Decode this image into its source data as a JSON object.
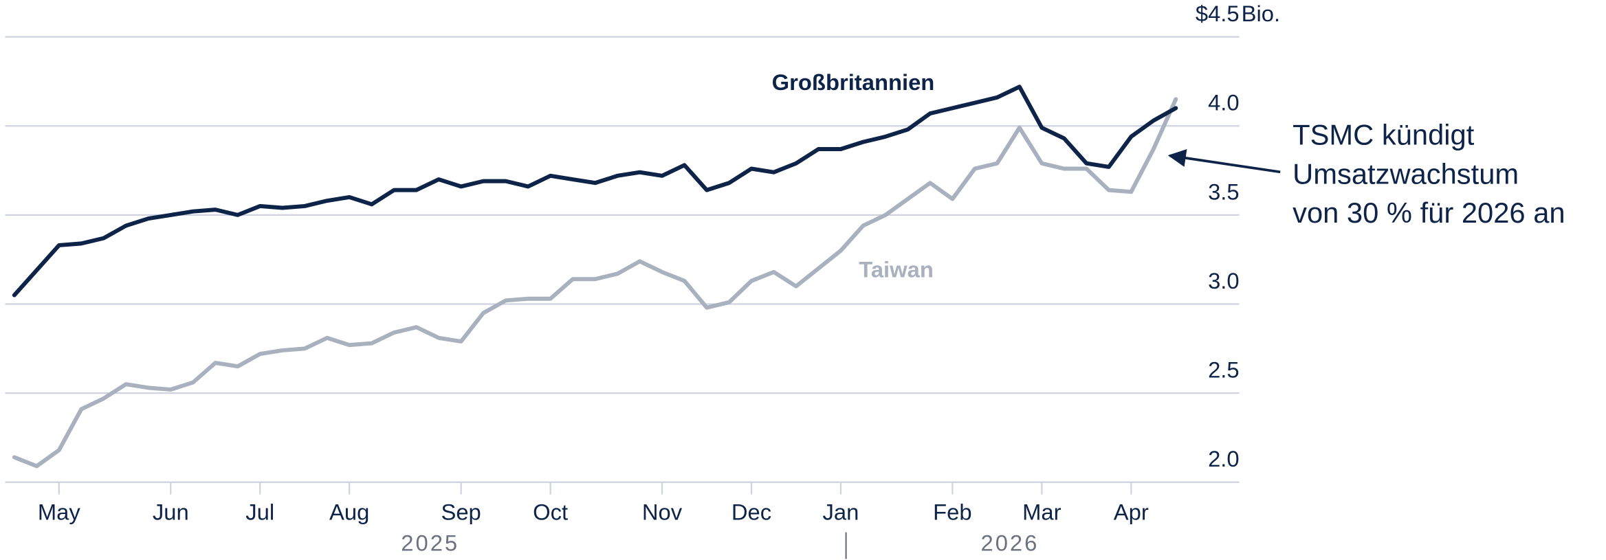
{
  "chart_data": {
    "type": "line",
    "categories": [
      null,
      null,
      "May",
      null,
      null,
      null,
      null,
      "Jun",
      null,
      null,
      null,
      "Jul",
      null,
      null,
      null,
      "Aug",
      null,
      null,
      null,
      null,
      "Sep",
      null,
      null,
      null,
      "Oct",
      null,
      null,
      null,
      null,
      "Nov",
      null,
      null,
      null,
      "Dec",
      null,
      null,
      null,
      "Jan",
      null,
      null,
      null,
      null,
      "Feb",
      null,
      null,
      null,
      "Mar",
      null,
      null,
      null,
      "Apr",
      null,
      null
    ],
    "year_labels": [
      "2025",
      "2026"
    ],
    "series": [
      {
        "name": "Großbritannien",
        "color": "#0d2347",
        "values": [
          3.05,
          3.19,
          3.33,
          3.34,
          3.37,
          3.44,
          3.48,
          3.5,
          3.52,
          3.53,
          3.5,
          3.55,
          3.54,
          3.55,
          3.58,
          3.6,
          3.56,
          3.64,
          3.64,
          3.7,
          3.66,
          3.69,
          3.69,
          3.66,
          3.72,
          3.7,
          3.68,
          3.72,
          3.74,
          3.72,
          3.78,
          3.64,
          3.68,
          3.76,
          3.74,
          3.79,
          3.87,
          3.87,
          3.91,
          3.94,
          3.98,
          4.07,
          4.1,
          4.13,
          4.16,
          4.22,
          3.99,
          3.93,
          3.79,
          3.77,
          3.94,
          4.03,
          4.1
        ]
      },
      {
        "name": "Taiwan",
        "color": "#a9b1bf",
        "values": [
          2.14,
          2.09,
          2.18,
          2.41,
          2.47,
          2.55,
          2.53,
          2.52,
          2.56,
          2.67,
          2.65,
          2.72,
          2.74,
          2.75,
          2.81,
          2.77,
          2.78,
          2.84,
          2.87,
          2.81,
          2.79,
          2.95,
          3.02,
          3.03,
          3.03,
          3.14,
          3.14,
          3.17,
          3.24,
          3.18,
          3.13,
          2.98,
          3.01,
          3.13,
          3.18,
          3.1,
          3.2,
          3.3,
          3.44,
          3.5,
          3.59,
          3.68,
          3.59,
          3.76,
          3.79,
          3.99,
          3.79,
          3.76,
          3.76,
          3.64,
          3.63,
          3.87,
          4.15
        ]
      }
    ],
    "ylim": [
      2,
      4.5
    ],
    "yticks": [
      {
        "value": 2,
        "label": "2.0"
      },
      2.5,
      {
        "value": 3,
        "label": "3.0"
      },
      3.5,
      {
        "value": 4,
        "label": "4.0"
      },
      {
        "value": 4.5,
        "label": "$4.5"
      }
    ],
    "y_unit": "Bio.",
    "grid": true,
    "annotation": [
      "TSMC kündigt",
      "Umsatzwachstum",
      "von 30 % für 2026 an"
    ]
  }
}
